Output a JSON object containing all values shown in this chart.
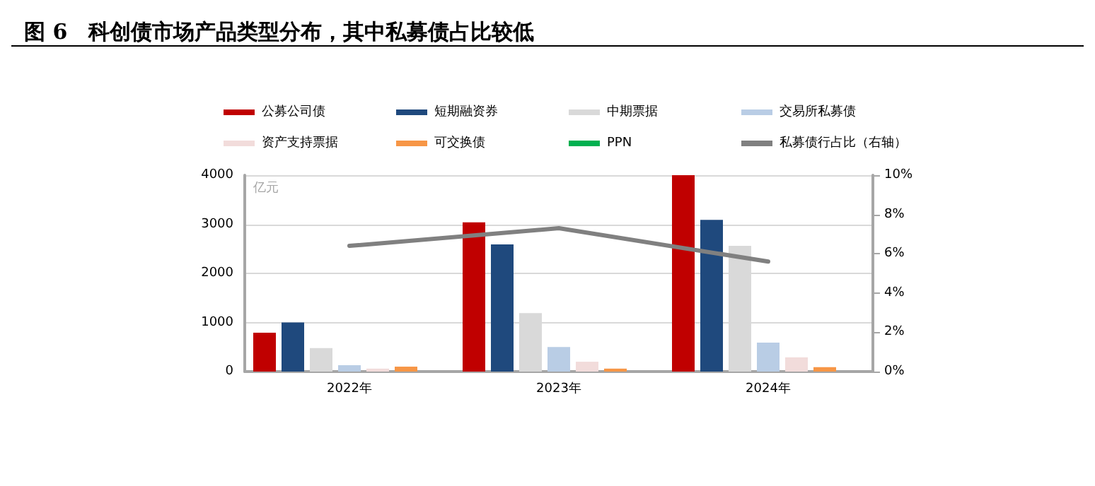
{
  "chart_data": {
    "type": "bar",
    "title": "图 6　科创债市场产品类型分布，其中私募债占比较低",
    "ylabel": "亿元",
    "categories": [
      "2022年",
      "2023年",
      "2024年"
    ],
    "series": [
      {
        "name": "公募公司债",
        "color": "#c00000",
        "values": [
          790,
          3040,
          4000
        ]
      },
      {
        "name": "短期融资券",
        "color": "#1f497d",
        "values": [
          1000,
          2590,
          3090
        ]
      },
      {
        "name": "中期票据",
        "color": "#d9d9d9",
        "values": [
          480,
          1190,
          2560
        ]
      },
      {
        "name": "交易所私募债",
        "color": "#b9cde5",
        "values": [
          130,
          500,
          590
        ]
      },
      {
        "name": "资产支持票据",
        "color": "#f2dcdb",
        "values": [
          60,
          200,
          290
        ]
      },
      {
        "name": "可交换债",
        "color": "#f79646",
        "values": [
          100,
          60,
          90
        ]
      },
      {
        "name": "PPN",
        "color": "#00b050",
        "values": [
          0,
          0,
          0
        ]
      },
      {
        "name": "私募债行占比（右轴）",
        "type": "line",
        "axis": "y2",
        "color": "#808080",
        "marker": "none",
        "values": [
          6.4,
          7.3,
          5.6
        ]
      }
    ],
    "ylim": [
      0,
      4000
    ],
    "yticks": [
      0,
      1000,
      2000,
      3000,
      4000
    ],
    "y2lim": [
      0,
      10
    ],
    "y2ticks": [
      {
        "value": 0,
        "label": "0%"
      },
      {
        "value": 2,
        "label": "2%"
      },
      {
        "value": 4,
        "label": "4%"
      },
      {
        "value": 6,
        "label": "6%"
      },
      {
        "value": 8,
        "label": "8%"
      },
      {
        "value": 10,
        "label": "10%"
      }
    ],
    "grid": "y",
    "legend": "top"
  }
}
